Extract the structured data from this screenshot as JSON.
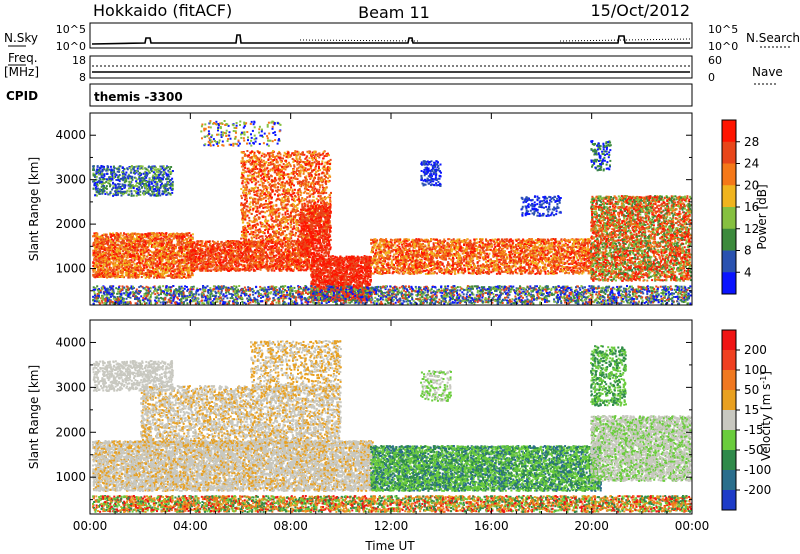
{
  "header": {
    "station": "Hokkaido (fitACF)",
    "beam": "Beam 11",
    "date": "15/Oct/2012"
  },
  "strip": {
    "nsky_label": "N.Sky",
    "nsky_ticks": [
      "10^5",
      "10^0"
    ],
    "nsearch_label": "N.Search",
    "nsearch_ticks": [
      "10^5",
      "10^0"
    ],
    "freq_label_line1": "Freq.",
    "freq_label_line2": "[MHz]",
    "freq_ticks": [
      "18",
      "8"
    ],
    "nave_label": "Nave",
    "nave_ticks": [
      "60",
      "0"
    ],
    "cpid_label": "CPID",
    "cpid_value": "themis -3300"
  },
  "chart_data": [
    {
      "type": "heatmap",
      "name": "power-panel",
      "ylabel": "Slant Range [km]",
      "ylim": [
        180,
        4500
      ],
      "yticks": [
        1000,
        2000,
        3000,
        4000
      ],
      "xlim": [
        0,
        24
      ],
      "x_tick_labels": [
        "00:00",
        "04:00",
        "08:00",
        "12:00",
        "16:00",
        "20:00",
        "00:00"
      ],
      "colorbar": {
        "label": "Power [dB]",
        "ticks": [
          "4",
          "8",
          "12",
          "16",
          "20",
          "24",
          "28"
        ],
        "colors": [
          "#0a14ff",
          "#2a52b0",
          "#3c8a3c",
          "#86c040",
          "#f0b41e",
          "#f57818",
          "#e8461a",
          "#ff1400"
        ]
      }
    },
    {
      "type": "heatmap",
      "name": "velocity-panel",
      "ylabel": "Slant Range [km]",
      "ylim": [
        180,
        4500
      ],
      "yticks": [
        1000,
        2000,
        3000,
        4000
      ],
      "xlim": [
        0,
        24
      ],
      "x_tick_labels": [
        "00:00",
        "04:00",
        "08:00",
        "12:00",
        "16:00",
        "20:00",
        "00:00"
      ],
      "xlabel": "Time UT",
      "colorbar": {
        "label_main": "Velocity [m s",
        "label_sup": "-1",
        "label_end": "]",
        "ticks": [
          "200",
          "100",
          "50",
          "15",
          "-15",
          "-50",
          "-100",
          "-200"
        ],
        "colors": [
          "#1e3cc8",
          "#2a6e8c",
          "#2f8a4a",
          "#6acc3c",
          "#c8c8c0",
          "#e8a020",
          "#f07820",
          "#f04020",
          "#f01414"
        ]
      }
    }
  ]
}
